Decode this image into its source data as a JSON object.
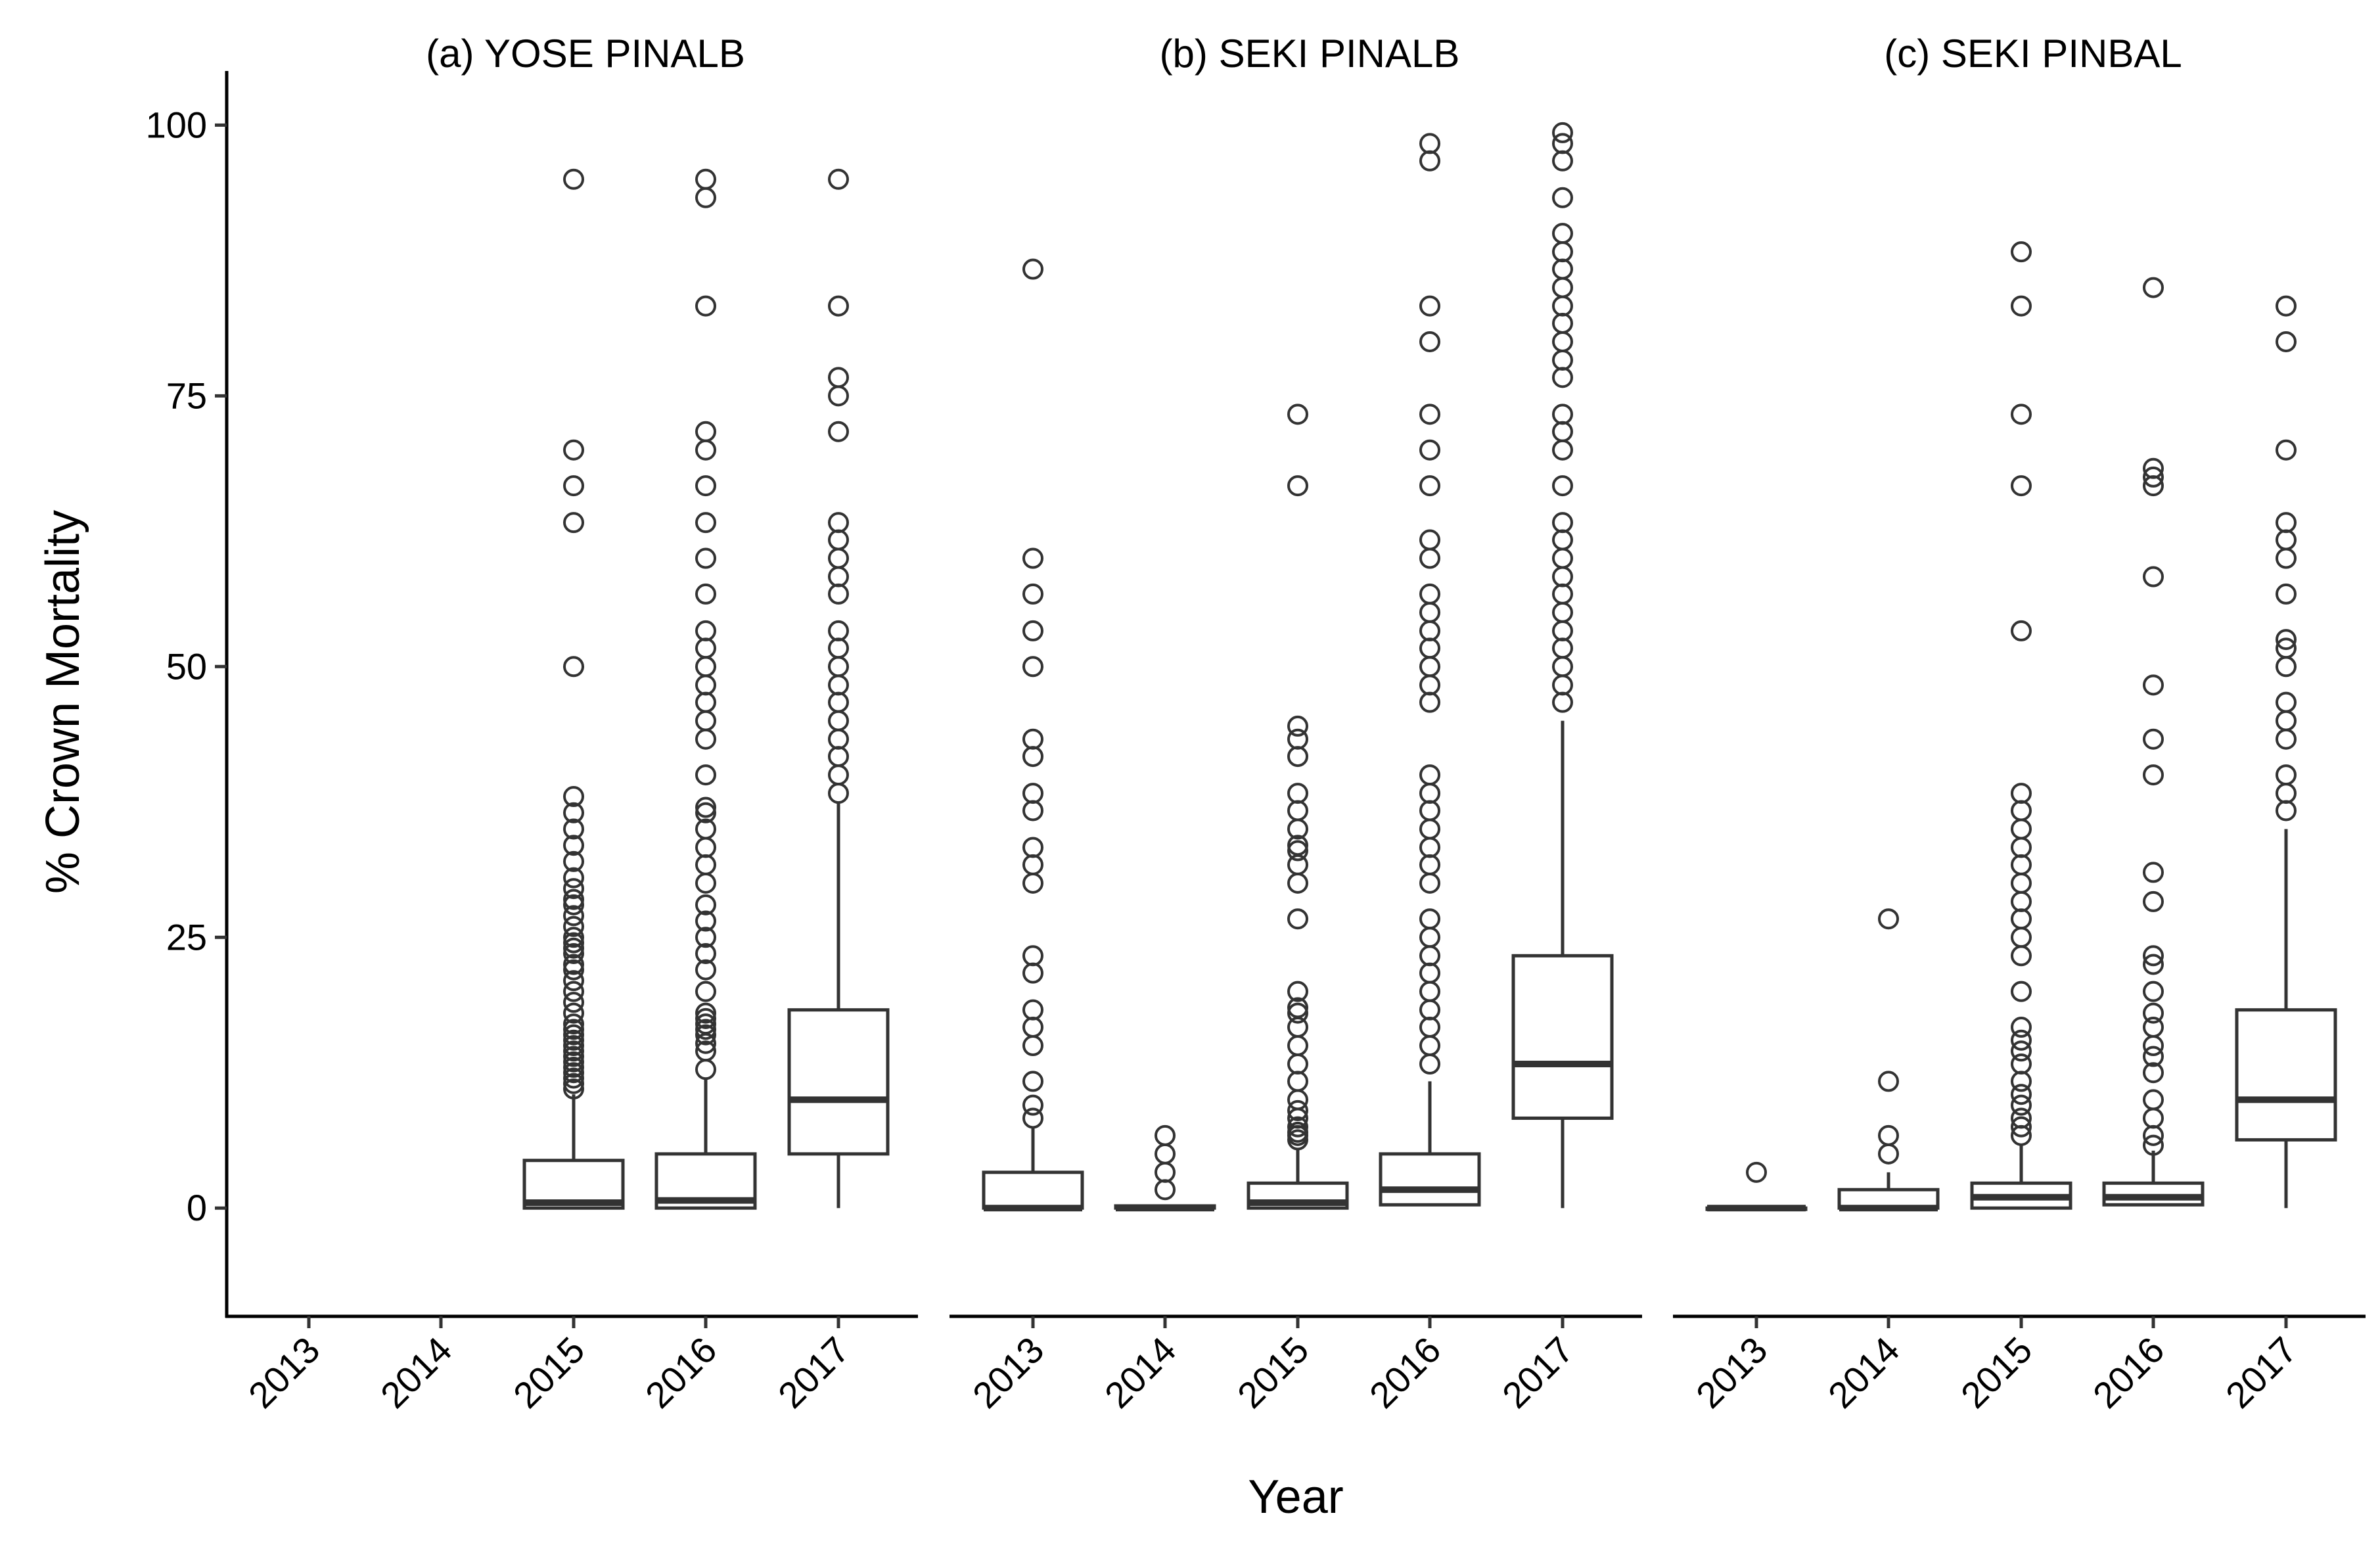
{
  "chart_data": {
    "type": "boxplot",
    "ylabel": "% Crown Mortality",
    "xlabel": "Year",
    "ylim": [
      -10,
      105
    ],
    "y_ticks": [
      0,
      25,
      50,
      75,
      100
    ],
    "categories": [
      "2013",
      "2014",
      "2015",
      "2016",
      "2017"
    ],
    "facets": [
      {
        "title": "(a) YOSE PINALB",
        "boxes": [
          null,
          null,
          {
            "category": "2015",
            "q1": 0,
            "median": 0.5,
            "q3": 4.4,
            "whisker_low": 0,
            "whisker_high": 10.5,
            "outliers": [
              11,
              11.5,
              12,
              12.5,
              13,
              13.5,
              14,
              14.5,
              15,
              15.5,
              16,
              16.5,
              17,
              18,
              19,
              20,
              21,
              22,
              22.5,
              23.5,
              24,
              24.5,
              25,
              26,
              27,
              28,
              28.5,
              29.5,
              30.5,
              32,
              33.5,
              35,
              36.5,
              38,
              50,
              63.3,
              66.7,
              70,
              95
            ]
          },
          {
            "category": "2016",
            "q1": 0,
            "median": 0.7,
            "q3": 5,
            "whisker_low": 0,
            "whisker_high": 12,
            "outliers": [
              12.8,
              14.5,
              15.2,
              16,
              16.5,
              17,
              17.5,
              18,
              20,
              22,
              23.5,
              25,
              26.5,
              28,
              30,
              31.7,
              33.3,
              35,
              36.5,
              37,
              40,
              43.3,
              45,
              46.7,
              48.3,
              50,
              51.7,
              53.3,
              56.7,
              60,
              63.3,
              66.7,
              70,
              71.7,
              83.3,
              93.3,
              95
            ]
          },
          {
            "category": "2017",
            "q1": 5,
            "median": 10,
            "q3": 18.3,
            "whisker_low": 0,
            "whisker_high": 37.5,
            "outliers": [
              38.3,
              40,
              41.7,
              43.3,
              45,
              46.7,
              48.3,
              50,
              51.7,
              53.3,
              56.7,
              58.3,
              60,
              61.7,
              63.3,
              71.7,
              75,
              76.7,
              83.3,
              95
            ]
          }
        ]
      },
      {
        "title": "(b) SEKI PINALB",
        "boxes": [
          {
            "category": "2013",
            "q1": 0,
            "median": 0,
            "q3": 3.3,
            "whisker_low": 0,
            "whisker_high": 7.5,
            "outliers": [
              8.3,
              9.5,
              11.7,
              15,
              16.7,
              18.3,
              21.7,
              23.3,
              30,
              31.7,
              33.3,
              36.7,
              38.3,
              41.7,
              43.3,
              50,
              53.3,
              56.7,
              60,
              86.7
            ]
          },
          {
            "category": "2014",
            "q1": 0,
            "median": 0,
            "q3": 0.2,
            "whisker_low": 0,
            "whisker_high": 0.2,
            "outliers": [
              1.7,
              3.3,
              5,
              6.7
            ]
          },
          {
            "category": "2015",
            "q1": 0,
            "median": 0.5,
            "q3": 2.3,
            "whisker_low": 0,
            "whisker_high": 5.5,
            "outliers": [
              6.3,
              6.7,
              7,
              7.5,
              8.3,
              9,
              10,
              11.7,
              13.3,
              15,
              16.7,
              18,
              18.5,
              20,
              26.7,
              30,
              31.7,
              33,
              33.5,
              35,
              36.7,
              38.3,
              41.7,
              43.3,
              44.5,
              66.7,
              73.3
            ]
          },
          {
            "category": "2016",
            "q1": 0.3,
            "median": 1.7,
            "q3": 5,
            "whisker_low": 0.3,
            "whisker_high": 11.7,
            "outliers": [
              13.3,
              15,
              16.7,
              18.3,
              20,
              21.7,
              23.3,
              25,
              26.7,
              30,
              31.7,
              33.3,
              35,
              36.7,
              38.3,
              40,
              46.7,
              48.3,
              50,
              51.7,
              53.3,
              55,
              56.7,
              60,
              61.7,
              66.7,
              70,
              73.3,
              80,
              83.3,
              96.7,
              98.3
            ]
          },
          {
            "category": "2017",
            "q1": 8.3,
            "median": 13.3,
            "q3": 23.3,
            "whisker_low": 0,
            "whisker_high": 45,
            "outliers": [
              46.7,
              48.3,
              50,
              51.7,
              53.3,
              55,
              56.7,
              58.3,
              60,
              61.7,
              63.3,
              66.7,
              70,
              71.7,
              73.3,
              76.7,
              78.3,
              80,
              81.7,
              83.3,
              85,
              86.7,
              88.3,
              90,
              93.3,
              96.7,
              98.3,
              99.3
            ]
          }
        ]
      },
      {
        "title": "(c) SEKI PINBAL",
        "boxes": [
          {
            "category": "2013",
            "q1": 0,
            "median": 0,
            "q3": 0,
            "whisker_low": 0,
            "whisker_high": 0,
            "outliers": [
              3.3
            ]
          },
          {
            "category": "2014",
            "q1": 0,
            "median": 0,
            "q3": 1.7,
            "whisker_low": 0,
            "whisker_high": 3.3,
            "outliers": [
              5,
              6.7,
              11.7,
              26.7
            ]
          },
          {
            "category": "2015",
            "q1": 0,
            "median": 1,
            "q3": 2.3,
            "whisker_low": 0,
            "whisker_high": 5.8,
            "outliers": [
              6.7,
              7.5,
              8.3,
              9.5,
              10.5,
              11.7,
              13.3,
              14.5,
              15.5,
              16.7,
              20,
              23.3,
              25,
              26.7,
              28.3,
              30,
              31.7,
              33.3,
              35,
              36.7,
              38.3,
              53.3,
              66.7,
              73.3,
              83.3,
              88.3
            ]
          },
          {
            "category": "2016",
            "q1": 0.3,
            "median": 1,
            "q3": 2.3,
            "whisker_low": 0.3,
            "whisker_high": 5.3,
            "outliers": [
              5.8,
              6.7,
              8.3,
              10,
              12.5,
              14,
              15,
              16.7,
              18,
              20,
              22.5,
              23.3,
              28.3,
              31,
              40,
              43.3,
              48.3,
              58.3,
              66.7,
              67.5,
              68.3,
              85
            ]
          },
          {
            "category": "2017",
            "q1": 6.3,
            "median": 10,
            "q3": 18.3,
            "whisker_low": 0,
            "whisker_high": 35,
            "outliers": [
              36.7,
              38.3,
              40,
              43.3,
              45,
              46.7,
              50,
              51.7,
              52.5,
              56.7,
              60,
              61.7,
              63.3,
              70,
              80,
              83.3
            ]
          }
        ]
      }
    ]
  }
}
